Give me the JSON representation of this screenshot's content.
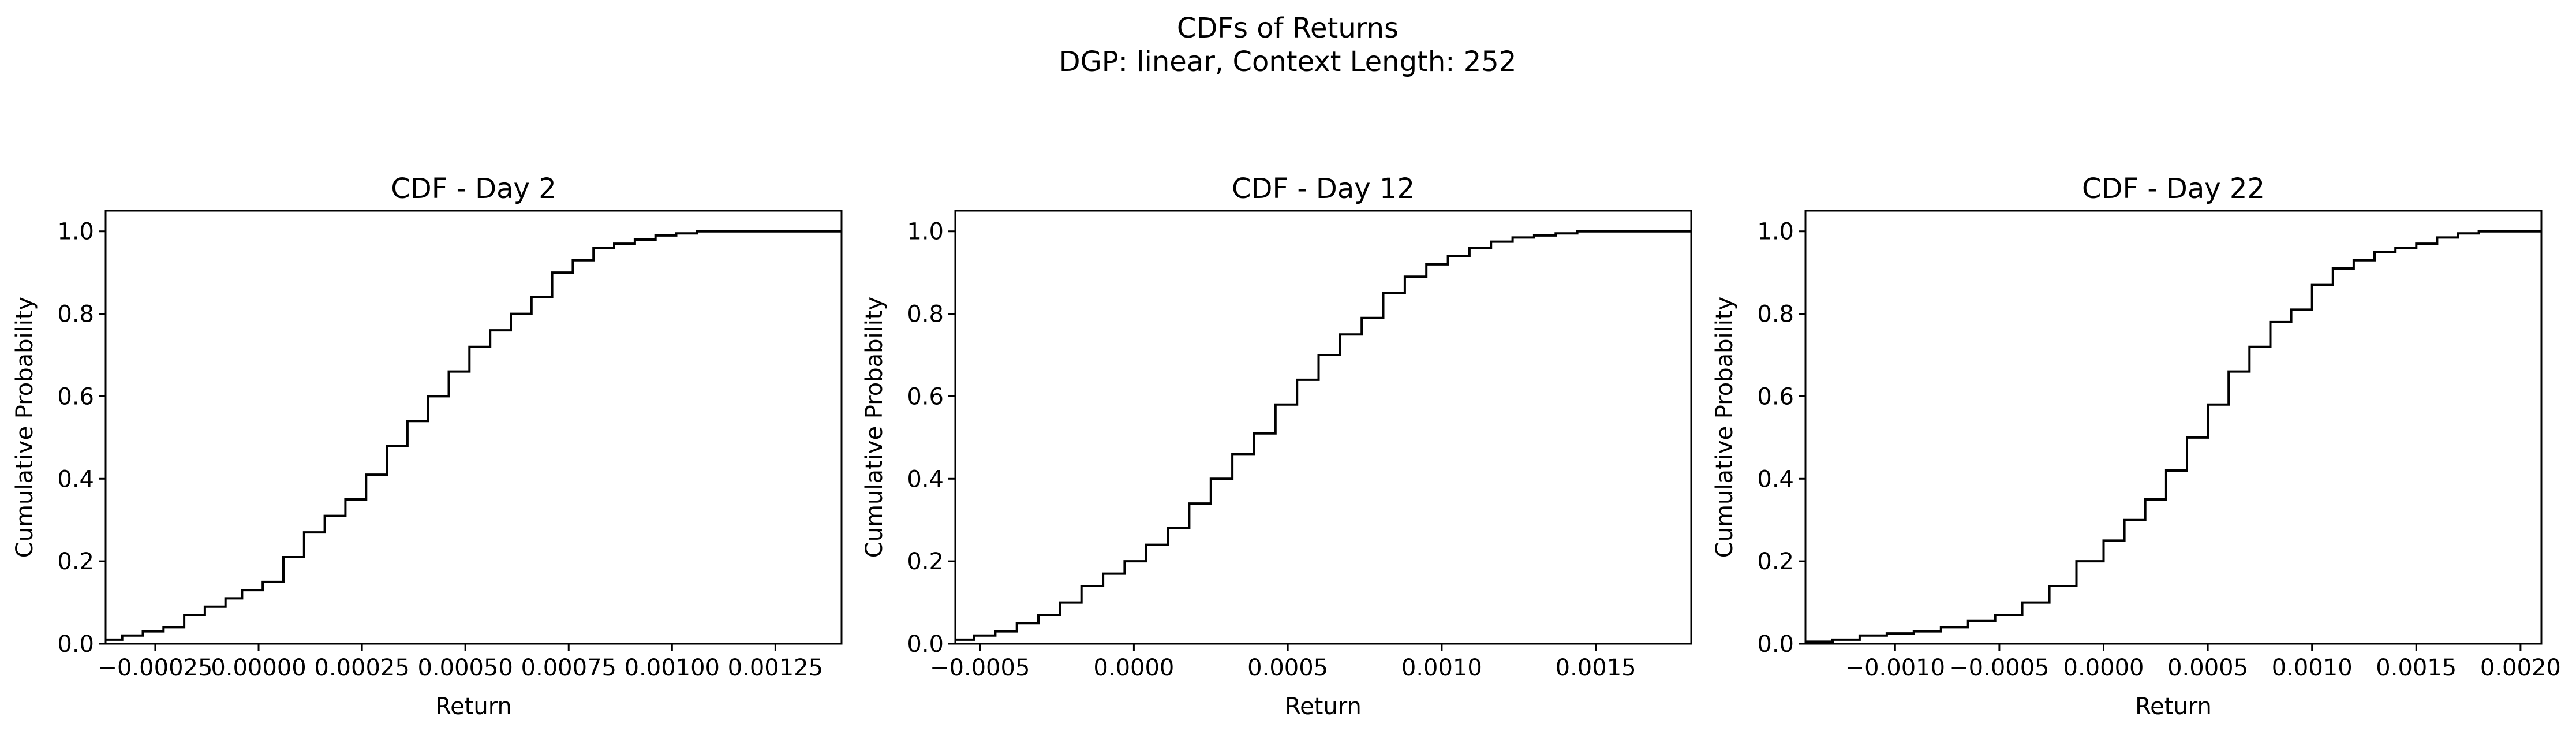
{
  "figure": {
    "suptitle_line1": "CDFs of Returns",
    "suptitle_line2": "DGP: linear, Context Length: 252"
  },
  "chart_data": [
    {
      "type": "line",
      "subtype": "step-cdf",
      "title": "CDF - Day 2",
      "xlabel": "Return",
      "ylabel": "Cumulative Probability",
      "xlim": [
        -0.00037,
        0.00141
      ],
      "ylim": [
        0.0,
        1.05
      ],
      "xticks": [
        -0.00025,
        0.0,
        0.00025,
        0.0005,
        0.00075,
        0.001,
        0.00125
      ],
      "xtick_labels": [
        "−0.00025",
        "0.00000",
        "0.00025",
        "0.00050",
        "0.00075",
        "0.00100",
        "0.00125"
      ],
      "yticks": [
        0.0,
        0.2,
        0.4,
        0.6,
        0.8,
        1.0
      ],
      "ytick_labels": [
        "0.0",
        "0.2",
        "0.4",
        "0.6",
        "0.8",
        "1.0"
      ],
      "grid": false,
      "series": [
        {
          "color": "#000000",
          "x": [
            -0.00037,
            -0.00033,
            -0.00028,
            -0.00023,
            -0.00018,
            -0.00013,
            -8e-05,
            -4e-05,
            1e-05,
            6e-05,
            0.00011,
            0.00016,
            0.00021,
            0.00026,
            0.00031,
            0.00036,
            0.00041,
            0.00046,
            0.00051,
            0.00056,
            0.00061,
            0.00066,
            0.00071,
            0.00076,
            0.00081,
            0.00086,
            0.00091,
            0.00096,
            0.00101,
            0.00106,
            0.00111,
            0.00116,
            0.00121,
            0.00126,
            0.00131,
            0.00136,
            0.00141
          ],
          "y": [
            0.01,
            0.02,
            0.03,
            0.04,
            0.07,
            0.09,
            0.11,
            0.13,
            0.15,
            0.21,
            0.27,
            0.31,
            0.35,
            0.41,
            0.48,
            0.54,
            0.6,
            0.66,
            0.72,
            0.76,
            0.8,
            0.84,
            0.9,
            0.93,
            0.96,
            0.97,
            0.98,
            0.99,
            0.995,
            1.0,
            1.0,
            1.0,
            1.0,
            1.0,
            1.0,
            1.0,
            1.0
          ]
        }
      ]
    },
    {
      "type": "line",
      "subtype": "step-cdf",
      "title": "CDF - Day 12",
      "xlabel": "Return",
      "ylabel": "Cumulative Probability",
      "xlim": [
        -0.00058,
        0.00181
      ],
      "ylim": [
        0.0,
        1.05
      ],
      "xticks": [
        -0.0005,
        0.0,
        0.0005,
        0.001,
        0.0015
      ],
      "xtick_labels": [
        "−0.0005",
        "0.0000",
        "0.0005",
        "0.0010",
        "0.0015"
      ],
      "yticks": [
        0.0,
        0.2,
        0.4,
        0.6,
        0.8,
        1.0
      ],
      "ytick_labels": [
        "0.0",
        "0.2",
        "0.4",
        "0.6",
        "0.8",
        "1.0"
      ],
      "grid": false,
      "series": [
        {
          "color": "#000000",
          "x": [
            -0.00058,
            -0.00052,
            -0.00045,
            -0.00038,
            -0.00031,
            -0.00024,
            -0.00017,
            -0.0001,
            -3e-05,
            4e-05,
            0.00011,
            0.00018,
            0.00025,
            0.00032,
            0.00039,
            0.00046,
            0.00053,
            0.0006,
            0.00067,
            0.00074,
            0.00081,
            0.00088,
            0.00095,
            0.00102,
            0.00109,
            0.00116,
            0.00123,
            0.0013,
            0.00137,
            0.00144,
            0.00151,
            0.00158,
            0.00165,
            0.00172,
            0.00181
          ],
          "y": [
            0.01,
            0.02,
            0.03,
            0.05,
            0.07,
            0.1,
            0.14,
            0.17,
            0.2,
            0.24,
            0.28,
            0.34,
            0.4,
            0.46,
            0.51,
            0.58,
            0.64,
            0.7,
            0.75,
            0.79,
            0.85,
            0.89,
            0.92,
            0.94,
            0.96,
            0.975,
            0.985,
            0.99,
            0.995,
            1.0,
            1.0,
            1.0,
            1.0,
            1.0,
            1.0
          ]
        }
      ]
    },
    {
      "type": "line",
      "subtype": "step-cdf",
      "title": "CDF - Day 22",
      "xlabel": "Return",
      "ylabel": "Cumulative Probability",
      "xlim": [
        -0.00143,
        0.0021
      ],
      "ylim": [
        0.0,
        1.05
      ],
      "xticks": [
        -0.001,
        -0.0005,
        0.0,
        0.0005,
        0.001,
        0.0015,
        0.002
      ],
      "xtick_labels": [
        "−0.0010",
        "−0.0005",
        "0.0000",
        "0.0005",
        "0.0010",
        "0.0015",
        "0.0020"
      ],
      "yticks": [
        0.0,
        0.2,
        0.4,
        0.6,
        0.8,
        1.0
      ],
      "ytick_labels": [
        "0.0",
        "0.2",
        "0.4",
        "0.6",
        "0.8",
        "1.0"
      ],
      "grid": false,
      "series": [
        {
          "color": "#000000",
          "x": [
            -0.00143,
            -0.0013,
            -0.00117,
            -0.00104,
            -0.00091,
            -0.00078,
            -0.00065,
            -0.00052,
            -0.00039,
            -0.00026,
            -0.00013,
            0.0,
            0.0001,
            0.0002,
            0.0003,
            0.0004,
            0.0005,
            0.0006,
            0.0007,
            0.0008,
            0.0009,
            0.001,
            0.0011,
            0.0012,
            0.0013,
            0.0014,
            0.0015,
            0.0016,
            0.0017,
            0.0018,
            0.0019,
            0.002,
            0.0021
          ],
          "y": [
            0.005,
            0.01,
            0.02,
            0.025,
            0.03,
            0.04,
            0.055,
            0.07,
            0.1,
            0.14,
            0.2,
            0.25,
            0.3,
            0.35,
            0.42,
            0.5,
            0.58,
            0.66,
            0.72,
            0.78,
            0.81,
            0.87,
            0.91,
            0.93,
            0.95,
            0.96,
            0.97,
            0.985,
            0.995,
            1.0,
            1.0,
            1.0,
            1.0
          ]
        }
      ]
    }
  ]
}
